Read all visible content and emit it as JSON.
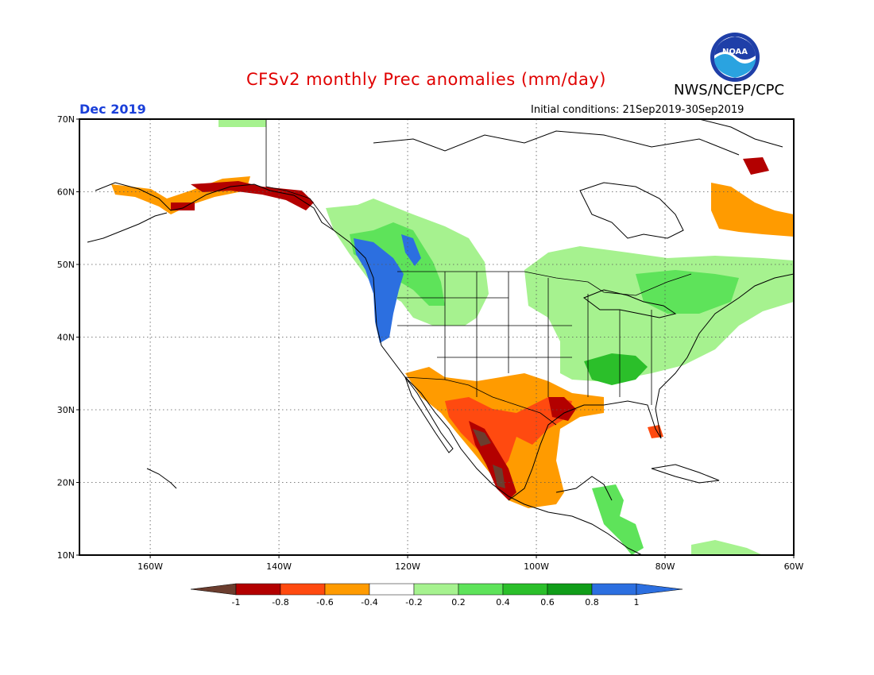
{
  "header": {
    "title": "CFSv2 monthly Prec anomalies (mm/day)",
    "agency": "NWS/NCEP/CPC",
    "logo_text": "NOAA",
    "month": "Dec 2019",
    "initial_conditions": "Initial conditions: 21Sep2019-30Sep2019"
  },
  "map": {
    "lat_labels": [
      "70N",
      "60N",
      "50N",
      "40N",
      "30N",
      "20N",
      "10N"
    ],
    "lon_labels": [
      "160W",
      "140W",
      "120W",
      "100W",
      "80W",
      "60W"
    ],
    "lat_values": [
      70,
      60,
      50,
      40,
      30,
      20,
      10
    ],
    "lon_values": [
      -160,
      -140,
      -120,
      -100,
      -80,
      -60
    ]
  },
  "colorbar": {
    "labels": [
      "-1",
      "-0.8",
      "-0.6",
      "-0.4",
      "-0.2",
      "0.2",
      "0.4",
      "0.6",
      "0.8",
      "1"
    ],
    "colors": [
      "#6b3d2e",
      "#b30000",
      "#ff4a10",
      "#ff9b00",
      "#ffffff",
      "#a6f28f",
      "#5ee35a",
      "#2bbf2a",
      "#119d19",
      "#2c6fe0"
    ],
    "neg_end_color": "#6b3d2e",
    "pos_end_color": "#2c6fe0"
  },
  "regions": [
    {
      "name": "pacific-northwest-wet",
      "color": "#2c6fe0"
    },
    {
      "name": "northern-rockies-wet",
      "color": "#5ee35a"
    },
    {
      "name": "eastern-us-wet",
      "color": "#a6f28f"
    },
    {
      "name": "southwest-mexico-dry",
      "color": "#ff9b00"
    },
    {
      "name": "gulf-coast-dry",
      "color": "#b30000"
    }
  ]
}
